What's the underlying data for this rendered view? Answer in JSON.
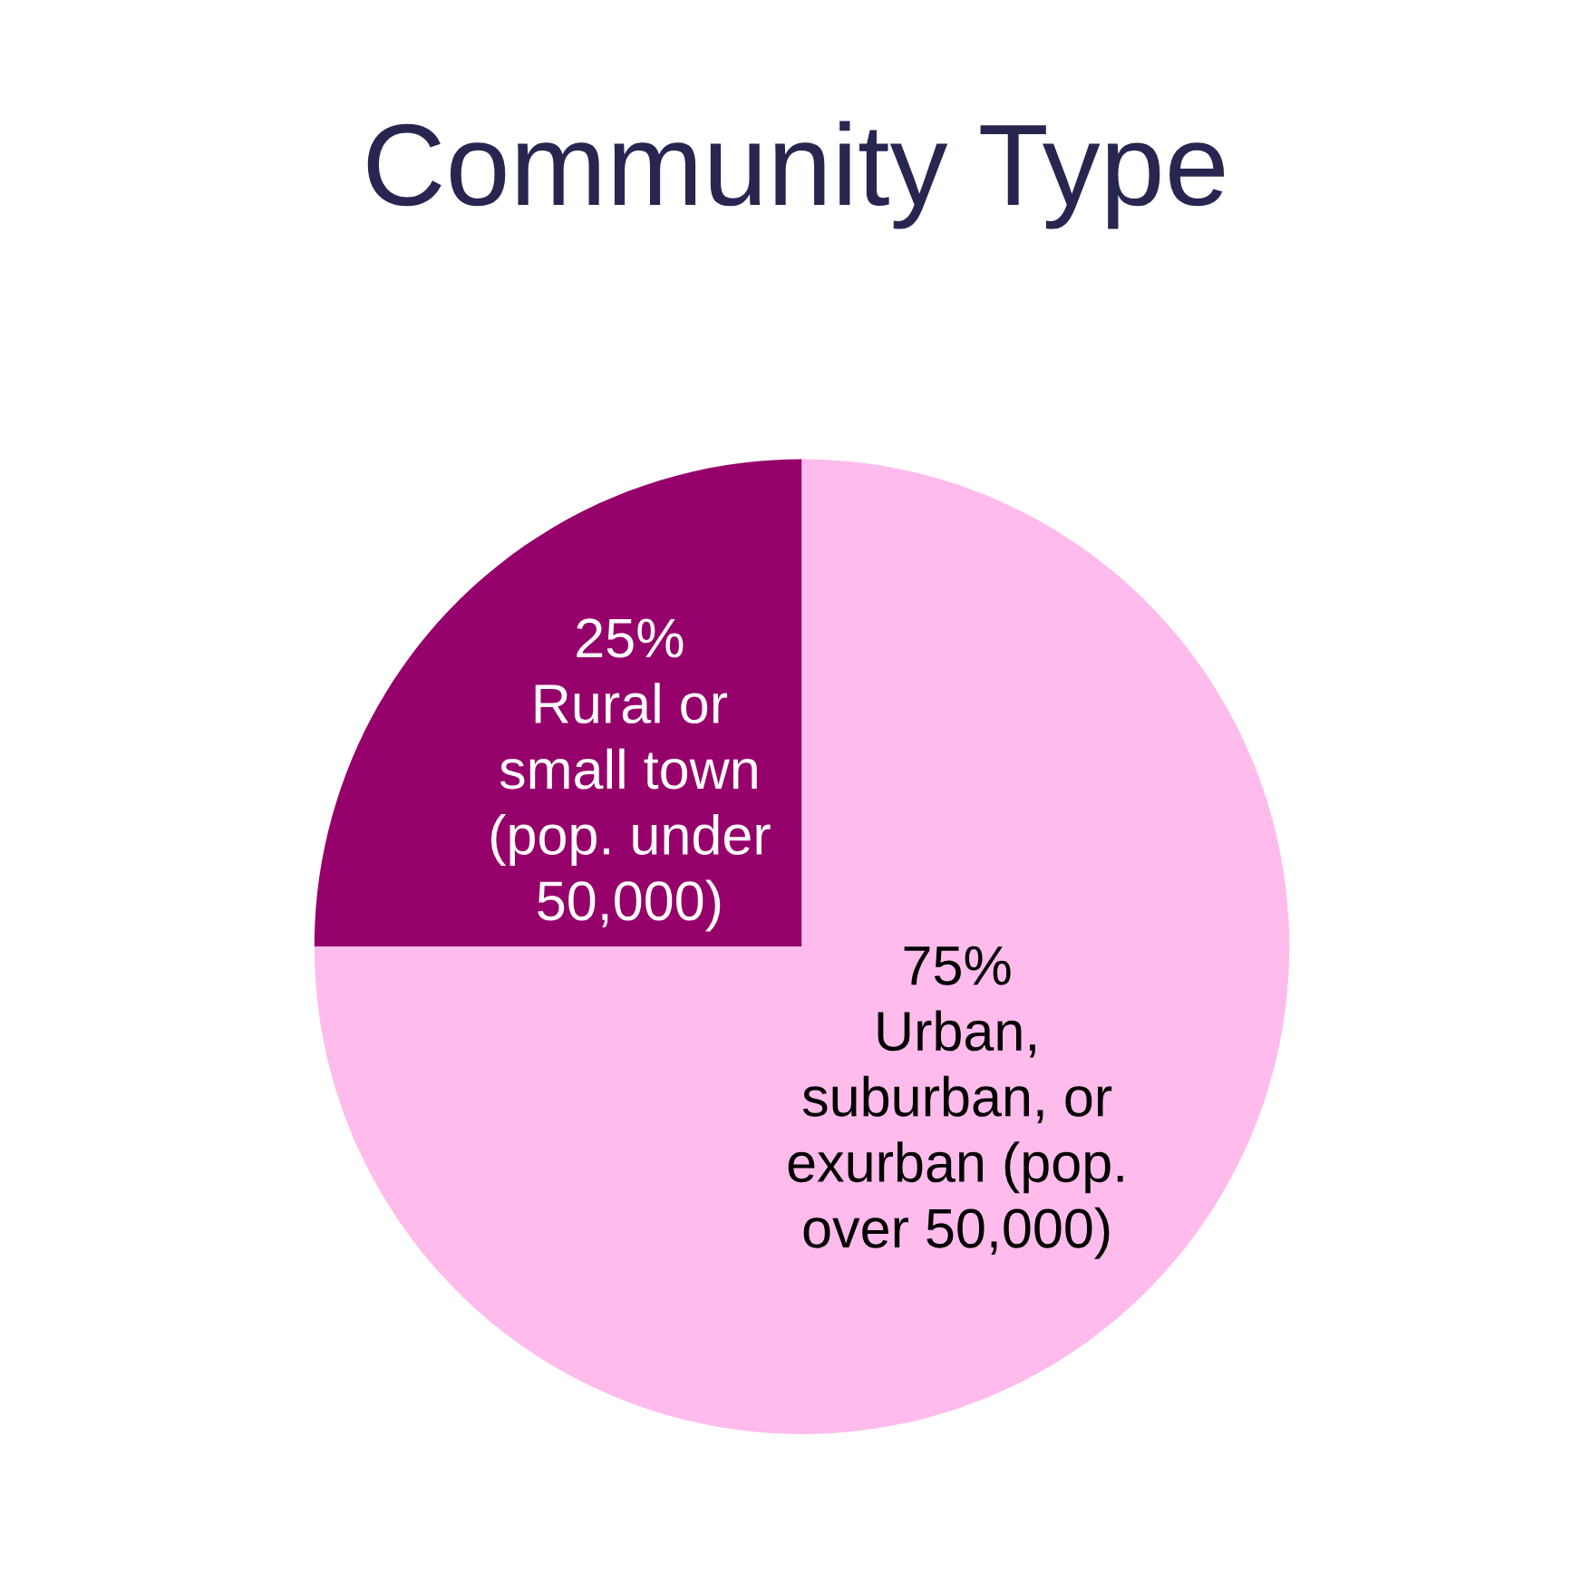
{
  "chart_data": {
    "type": "pie",
    "title": "Community Type",
    "categories": [
      "Rural or\nsmall town\n(pop. under\n50,000)",
      "Urban,\nsuburban, or\nexurban (pop.\nover 50,000)"
    ],
    "values": [
      25,
      75
    ],
    "value_labels": [
      "25%",
      "75%"
    ],
    "colors": [
      "#96006b",
      "#ffbbeb"
    ]
  }
}
